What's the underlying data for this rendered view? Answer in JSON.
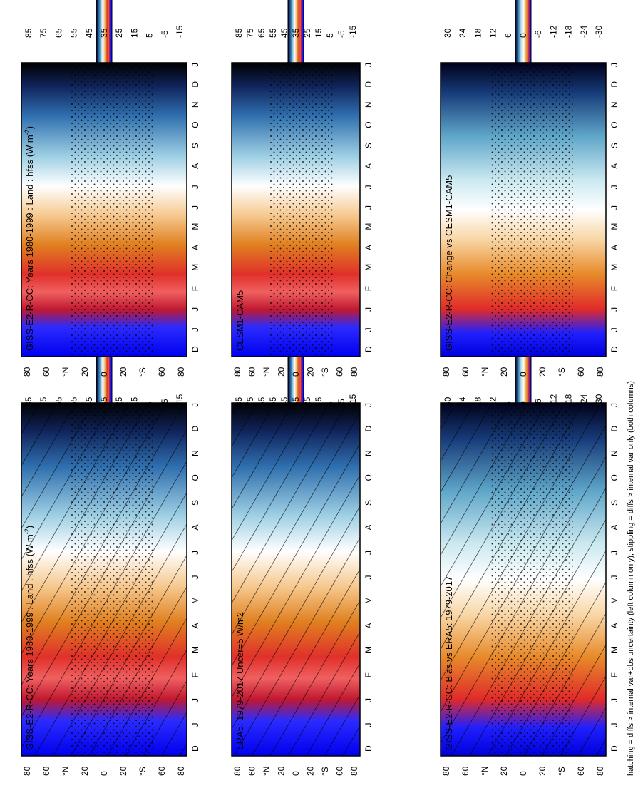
{
  "footer_note": "hatching = diffs > internal var+obs uncertainty (left column only); stippling = diffs > internal var only (both columns)",
  "colorbar_sets": {
    "abs": {
      "labels": [
        "85",
        "75",
        "65",
        "55",
        "45",
        "35",
        "25",
        "15",
        "5",
        "-5",
        "-15"
      ]
    },
    "diff": {
      "labels": [
        "30",
        "24",
        "18",
        "12",
        "6",
        "0",
        "-6",
        "-12",
        "-18",
        "-24",
        "-30"
      ]
    }
  },
  "month_labels": [
    "D",
    "J",
    "J",
    "F",
    "M",
    "A",
    "M",
    "J",
    "J",
    "A",
    "S",
    "O",
    "N",
    "D",
    "J"
  ],
  "lat_labels": [
    "80",
    "60",
    "°N",
    "20",
    "0",
    "20",
    "°S",
    "60",
    "80"
  ],
  "panels": [
    {
      "id": "model-left",
      "title": "GISS-E2-R-CC: Years 1980-1999 : Land : hfss (W m",
      "title_sup": "-2",
      "title_tail": ")",
      "scale": "abs"
    },
    {
      "id": "obs",
      "title": "ERA5: 1979-2017 Uncer=5 W/m2",
      "scale": "abs"
    },
    {
      "id": "bias",
      "title": "GISS-E2-R-CC: Bias vs ERA5: 1979-2017",
      "scale": "diff"
    },
    {
      "id": "model-right",
      "title": "GISS-E2-R-CC: Years 1980-1999 : Land : hfss (W m",
      "title_sup": "-2",
      "title_tail": ")",
      "scale": "abs"
    },
    {
      "id": "cesm",
      "title": "CESM1-CAM5",
      "scale": "abs"
    },
    {
      "id": "change",
      "title": "GISS-E2-R-CC: Change vs CESM1-CAM5",
      "scale": "diff"
    }
  ],
  "chart_data": [
    {
      "type": "heatmap",
      "title": "GISS-E2-R-CC: Years 1980-1999 : Land : hfss (W m-2)",
      "xlabel": "",
      "ylabel": "",
      "x": [
        "J",
        "F",
        "M",
        "A",
        "M",
        "J",
        "J",
        "A",
        "S",
        "O",
        "N",
        "D"
      ],
      "y_range": [
        -90,
        90
      ],
      "colorbar": [
        85,
        75,
        65,
        55,
        45,
        35,
        25,
        15,
        5,
        -5,
        -15
      ],
      "hatching": true,
      "stippling": true
    },
    {
      "type": "heatmap",
      "title": "ERA5: 1979-2017 Uncer=5 W/m2",
      "x": [
        "J",
        "F",
        "M",
        "A",
        "M",
        "J",
        "J",
        "A",
        "S",
        "O",
        "N",
        "D"
      ],
      "y_range": [
        -90,
        90
      ],
      "colorbar": [
        85,
        75,
        65,
        55,
        45,
        35,
        25,
        15,
        5,
        -5,
        -15
      ],
      "hatching": true
    },
    {
      "type": "heatmap",
      "title": "GISS-E2-R-CC: Bias vs ERA5: 1979-2017",
      "x": [
        "J",
        "F",
        "M",
        "A",
        "M",
        "J",
        "J",
        "A",
        "S",
        "O",
        "N",
        "D"
      ],
      "y_range": [
        -90,
        90
      ],
      "colorbar": [
        30,
        24,
        18,
        12,
        6,
        0,
        -6,
        -12,
        -18,
        -24,
        -30
      ],
      "hatching": true,
      "stippling": true
    },
    {
      "type": "heatmap",
      "title": "GISS-E2-R-CC: Years 1980-1999 : Land : hfss (W m-2)",
      "x": [
        "J",
        "F",
        "M",
        "A",
        "M",
        "J",
        "J",
        "A",
        "S",
        "O",
        "N",
        "D"
      ],
      "y_range": [
        -90,
        90
      ],
      "colorbar": [
        85,
        75,
        65,
        55,
        45,
        35,
        25,
        15,
        5,
        -5,
        -15
      ],
      "stippling": true
    },
    {
      "type": "heatmap",
      "title": "CESM1-CAM5",
      "x": [
        "J",
        "F",
        "M",
        "A",
        "M",
        "J",
        "J",
        "A",
        "S",
        "O",
        "N",
        "D"
      ],
      "y_range": [
        -90,
        90
      ],
      "colorbar": [
        85,
        75,
        65,
        55,
        45,
        35,
        25,
        15,
        5,
        -5,
        -15
      ],
      "stippling": true
    },
    {
      "type": "heatmap",
      "title": "GISS-E2-R-CC: Change vs CESM1-CAM5",
      "x": [
        "J",
        "F",
        "M",
        "A",
        "M",
        "J",
        "J",
        "A",
        "S",
        "O",
        "N",
        "D"
      ],
      "y_range": [
        -90,
        90
      ],
      "colorbar": [
        30,
        24,
        18,
        12,
        6,
        0,
        -6,
        -12,
        -18,
        -24,
        -30
      ],
      "stippling": true
    }
  ]
}
